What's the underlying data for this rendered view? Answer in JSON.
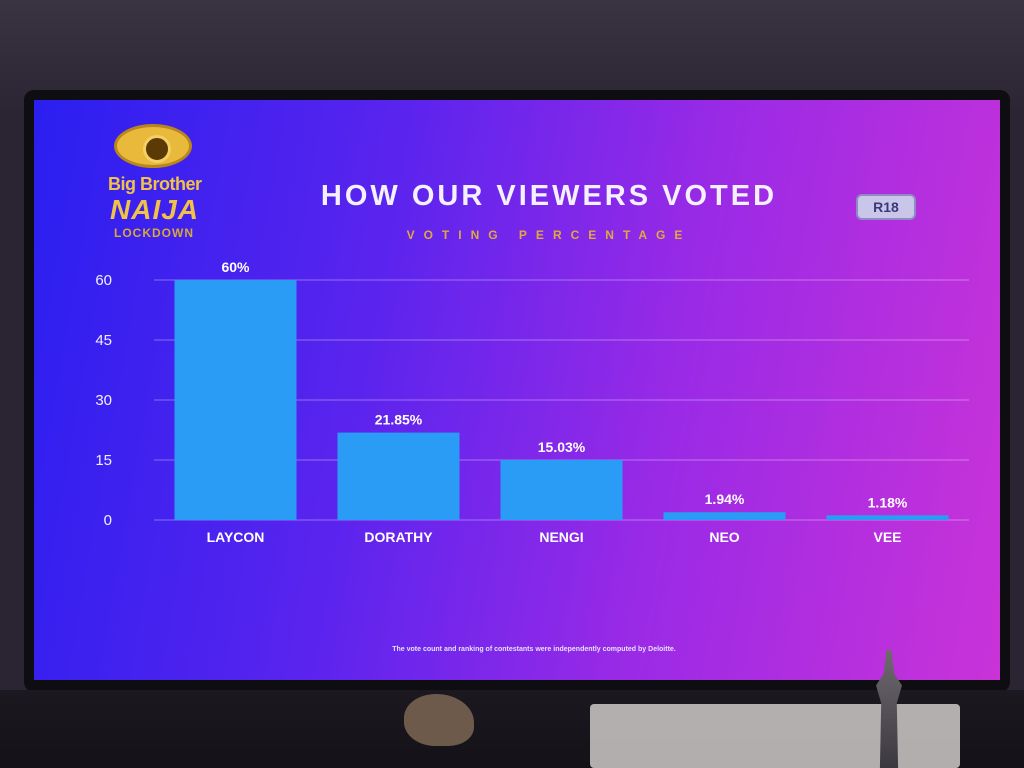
{
  "logo": {
    "line1": "Big Brother",
    "line2": "NAIJA",
    "line3": "LOCKDOWN"
  },
  "rating_badge": "R18",
  "chart_data": {
    "type": "bar",
    "title": "HOW OUR VIEWERS VOTED",
    "subtitle": "VOTING PERCENTAGE",
    "categories": [
      "LAYCON",
      "DORATHY",
      "NENGI",
      "NEO",
      "VEE"
    ],
    "values": [
      60,
      21.85,
      15.03,
      1.94,
      1.18
    ],
    "data_labels": [
      "60%",
      "21.85%",
      "15.03%",
      "1.94%",
      "1.18%"
    ],
    "yticks": [
      "60",
      "45",
      "30",
      "15",
      "0"
    ],
    "ylim": [
      0,
      60
    ],
    "grid": true,
    "bar_color": "#2a9cf6"
  },
  "footnote": "The vote count and ranking of contestants were independently computed by Deloitte."
}
